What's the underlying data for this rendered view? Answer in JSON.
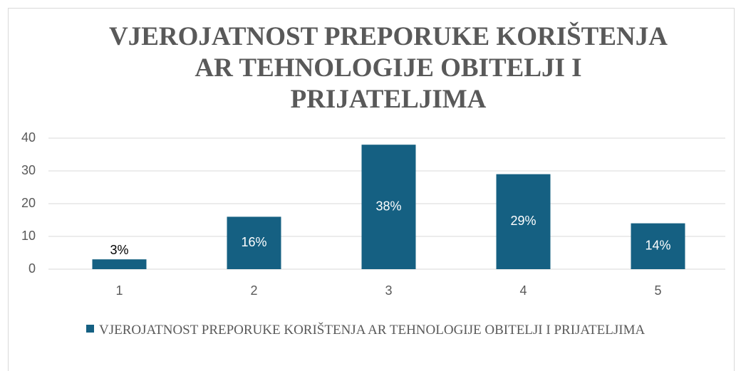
{
  "chart_data": {
    "type": "bar",
    "title": "VJEROJATNOST PREPORUKE KORIŠTENJA AR TEHNOLOGIJE OBITELJI I PRIJATELJIMA",
    "categories": [
      "1",
      "2",
      "3",
      "4",
      "5"
    ],
    "series": [
      {
        "name": "VJEROJATNOST PREPORUKE KORIŠTENJA AR TEHNOLOGIJE OBITELJI I PRIJATELJIMA",
        "color": "#156082",
        "values": [
          3,
          16,
          38,
          29,
          14
        ],
        "value_labels": [
          "3%",
          "16%",
          "38%",
          "29%",
          "14%"
        ]
      }
    ],
    "ylim": [
      0,
      40
    ],
    "yticks": [
      0,
      10,
      20,
      30,
      40
    ],
    "grid": true,
    "legend": "bottom"
  }
}
